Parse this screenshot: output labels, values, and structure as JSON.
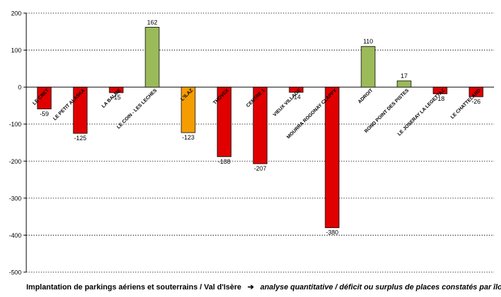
{
  "chart_data": {
    "type": "bar",
    "categories": [
      "LE CRET",
      "LE PETIT ALASKA",
      "LA BALME",
      "LE COIN - LES LECHES",
      "L'ILAZ",
      "THOVEX",
      "CENTRE 1",
      "VIEUX VILLAGE",
      "MOURRA ROGONAY CLAPPY",
      "ADROIT",
      "ROND POINT DES PISTES",
      "LE JOSERAY LA LEGETTAZ",
      "LE CHATTELARD"
    ],
    "values": [
      -59,
      -125,
      -15,
      162,
      -123,
      -188,
      -207,
      -14,
      -380,
      110,
      17,
      -18,
      -26
    ],
    "value_labels": [
      "-59",
      "-125",
      "-15",
      "162",
      "-123",
      "-188",
      "-207",
      "-14",
      "-380",
      "110",
      "17",
      "-18",
      "-26"
    ],
    "colors": [
      "#e00000",
      "#e00000",
      "#e00000",
      "#9bbb59",
      "#f59d00",
      "#e00000",
      "#e00000",
      "#e00000",
      "#e00000",
      "#9bbb59",
      "#9bbb59",
      "#e00000",
      "#e00000"
    ],
    "ylim": [
      -500,
      200
    ],
    "yticks": [
      200,
      100,
      0,
      -100,
      -200,
      -300,
      -400,
      -500
    ],
    "grid": true,
    "xlabel": "",
    "ylabel": "",
    "title": ""
  },
  "caption": {
    "main": "Implantation de parkings aériens et souterrains / Val d'Isère",
    "arrow": "➔",
    "italic": "analyse quantitative / déficit ou surplus de places constatés par îlot"
  }
}
